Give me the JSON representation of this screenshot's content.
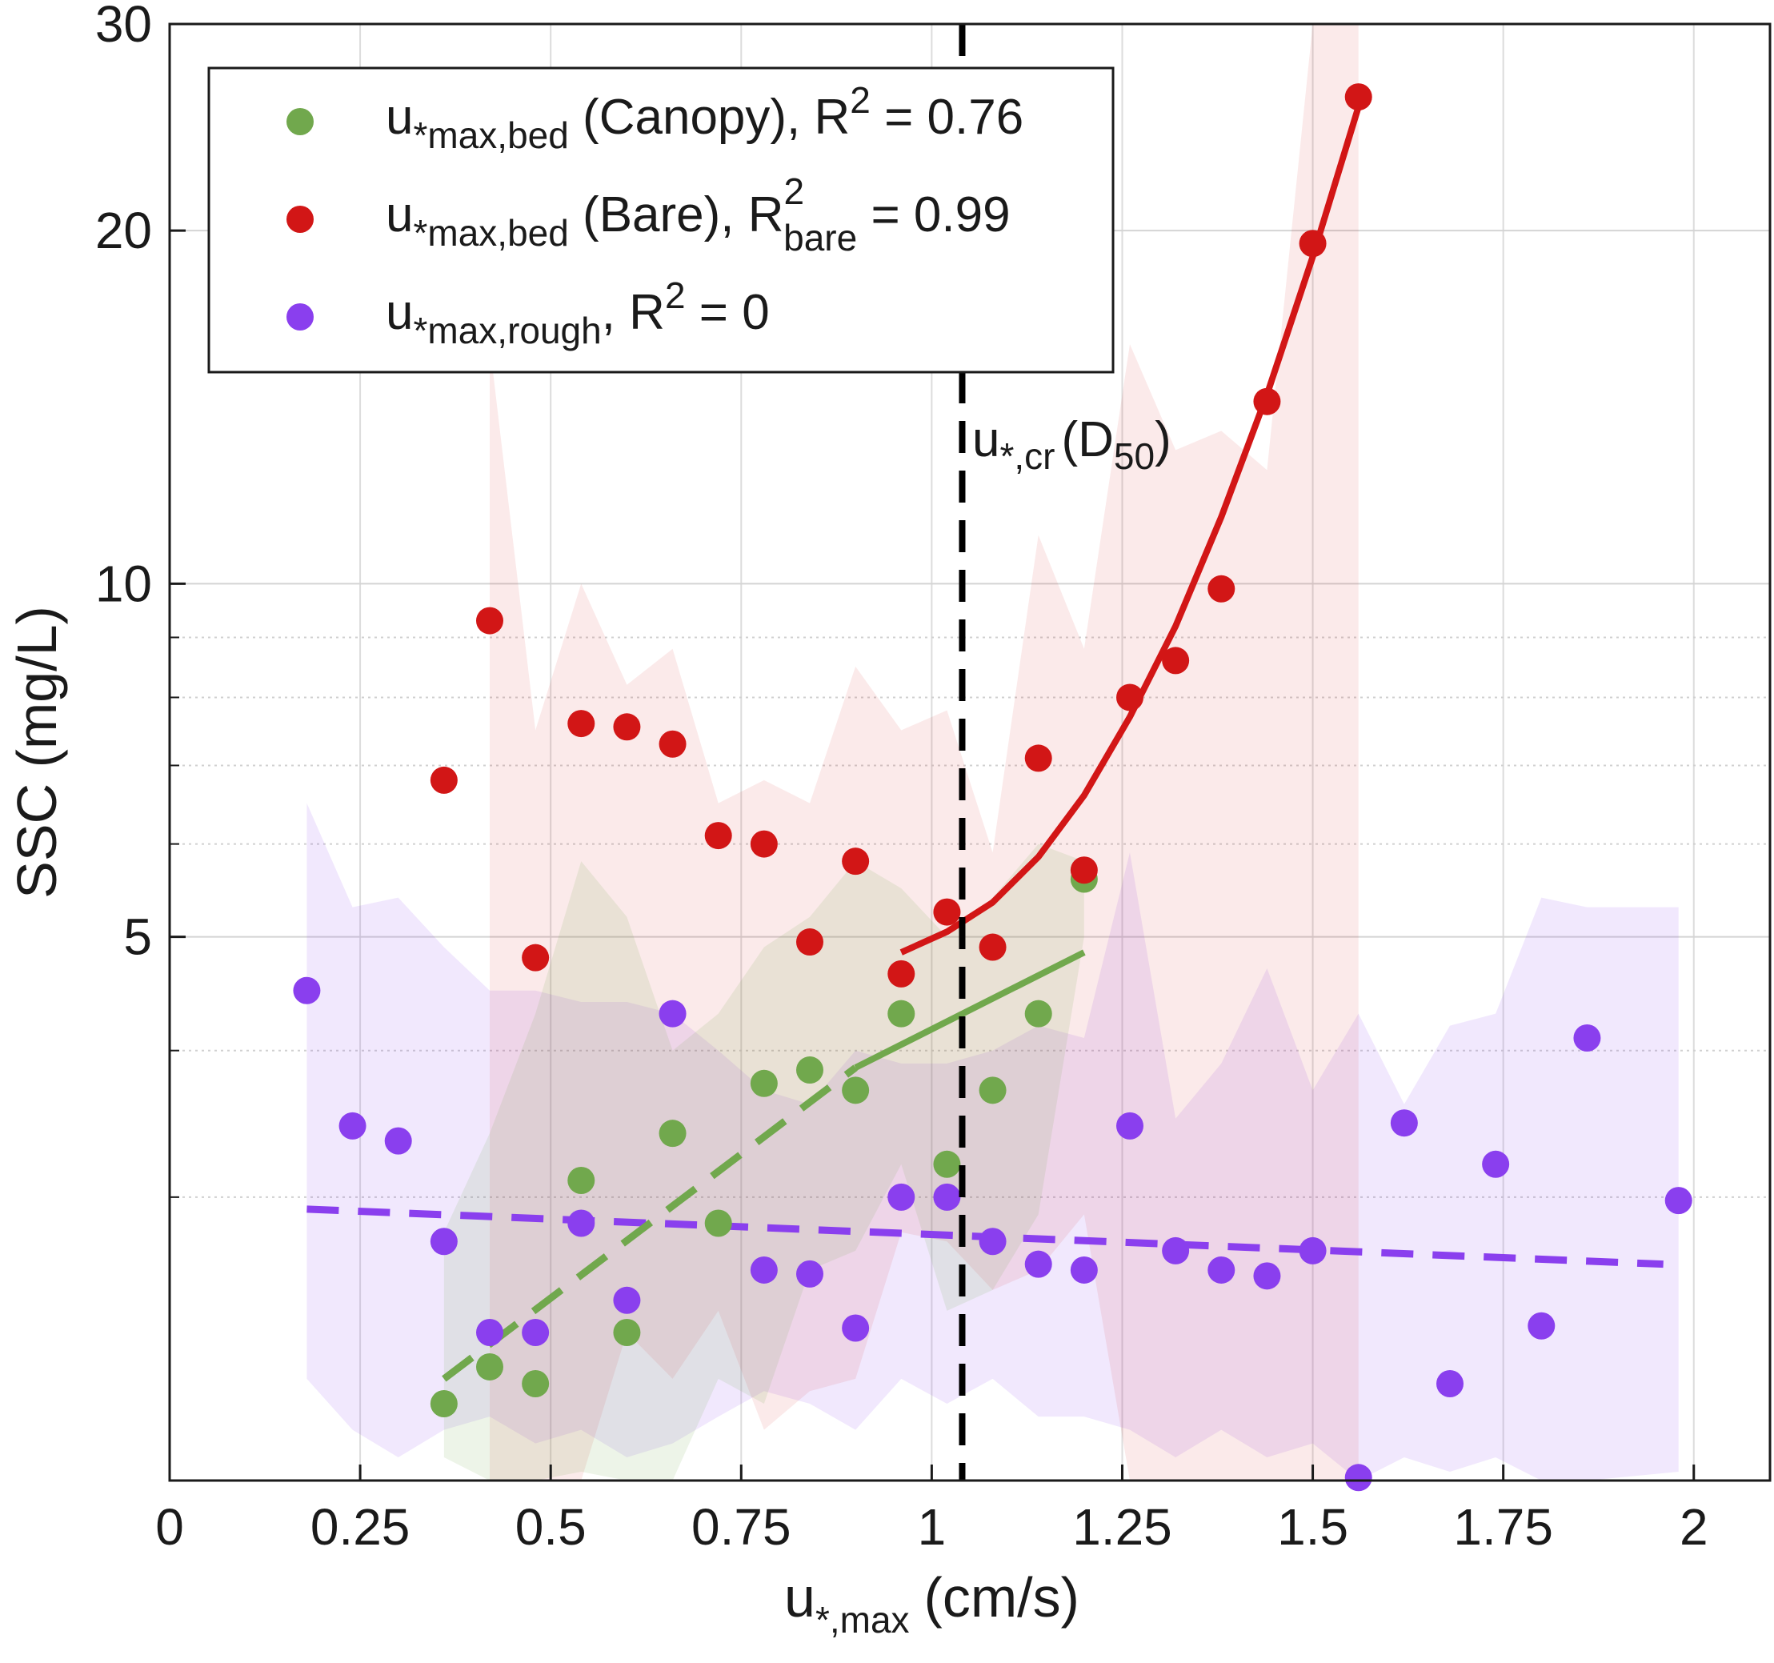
{
  "chart_data": {
    "type": "scatter",
    "title": "",
    "xlabel": {
      "main": "u",
      "sub": "*,max",
      "unit": "(cm/s)"
    },
    "ylabel": "SSC (mg/L)",
    "xlim": [
      0,
      2.1
    ],
    "y_scale": "log",
    "ylim": [
      1.72,
      30
    ],
    "x_ticks": [
      0,
      0.25,
      0.5,
      0.75,
      1,
      1.25,
      1.5,
      1.75,
      2
    ],
    "x_tick_labels": [
      "0",
      "0.25",
      "0.5",
      "0.75",
      "1",
      "1.25",
      "1.5",
      "1.75",
      "2"
    ],
    "y_ticks": [
      5,
      10,
      20,
      30
    ],
    "y_tick_labels": [
      "5",
      "10",
      "20",
      "30"
    ],
    "y_minor_ticks": [
      3,
      4,
      6,
      7,
      8,
      9
    ],
    "grid": true,
    "legend_position": "top-left",
    "critical_line": {
      "x": 1.04,
      "label_main": "u",
      "label_sub": "*,cr",
      "label_open": "(D",
      "label_sub2": "50",
      "label_close": ")"
    },
    "series": [
      {
        "name": "canopy",
        "color": "#71a84d",
        "legend": {
          "main": "u",
          "sub": "*max,bed",
          "rest": " (Canopy), R",
          "sup": "2",
          "tail": " = 0.76"
        },
        "x": [
          0.36,
          0.42,
          0.48,
          0.54,
          0.6,
          0.66,
          0.72,
          0.78,
          0.84,
          0.9,
          0.96,
          1.02,
          1.08,
          1.14,
          1.2
        ],
        "y": [
          2.0,
          2.15,
          2.08,
          3.1,
          2.3,
          3.4,
          2.85,
          3.75,
          3.85,
          3.7,
          4.3,
          3.2,
          3.7,
          4.3,
          5.6
        ],
        "fit_x": [
          0.36,
          1.2
        ],
        "fit_y": [
          2.1,
          4.85
        ],
        "fit_dash_until": 0.9,
        "band_upper": [
          2.8,
          3.4,
          4.3,
          5.8,
          5.2,
          4.0,
          4.3,
          4.9,
          5.2,
          5.8,
          5.5,
          5.0,
          5.4,
          6.0,
          5.8
        ],
        "band_lower": [
          1.8,
          1.72,
          1.72,
          1.75,
          1.72,
          1.72,
          2.1,
          2.0,
          2.6,
          2.7,
          3.2,
          2.4,
          2.5,
          2.9,
          5.0
        ]
      },
      {
        "name": "bare",
        "color": "#d21616",
        "legend": {
          "main": "u",
          "sub": "*max,bed",
          "rest": " (Bare), R",
          "sup": "2",
          "sub2": "bare",
          "tail": " = 0.99"
        },
        "x": [
          0.36,
          0.42,
          0.48,
          0.54,
          0.6,
          0.66,
          0.72,
          0.78,
          0.84,
          0.9,
          0.96,
          1.02,
          1.08,
          1.14,
          1.2,
          1.26,
          1.32,
          1.38,
          1.44,
          1.5,
          1.56
        ],
        "y": [
          6.8,
          9.3,
          4.8,
          7.6,
          7.55,
          7.3,
          6.1,
          6.0,
          4.95,
          5.8,
          4.65,
          5.25,
          4.9,
          7.1,
          5.7,
          8.0,
          8.6,
          9.9,
          14.3,
          19.5,
          26.0
        ],
        "fit_x": [
          0.96,
          1.02,
          1.08,
          1.14,
          1.2,
          1.26,
          1.32,
          1.38,
          1.44,
          1.5,
          1.56
        ],
        "fit_y": [
          4.85,
          5.05,
          5.35,
          5.85,
          6.6,
          7.7,
          9.2,
          11.4,
          14.5,
          19.0,
          25.5
        ],
        "band_x": [
          0.42,
          0.48,
          0.54,
          0.6,
          0.66,
          0.72,
          0.78,
          0.84,
          0.9,
          0.96,
          1.02,
          1.08,
          1.14,
          1.2,
          1.26,
          1.32,
          1.38,
          1.44,
          1.5,
          1.56
        ],
        "band_upper": [
          16.0,
          7.5,
          10.0,
          8.2,
          8.8,
          6.5,
          6.8,
          6.5,
          8.5,
          7.5,
          7.8,
          5.9,
          11.0,
          8.8,
          16.0,
          13.0,
          13.5,
          12.5,
          30.0,
          30.0
        ],
        "band_lower": [
          1.72,
          1.72,
          1.72,
          2.3,
          2.1,
          2.4,
          1.9,
          2.05,
          2.1,
          2.8,
          2.75,
          2.5,
          2.6,
          2.9,
          1.72,
          1.72,
          1.72,
          1.72,
          1.72,
          1.72
        ]
      },
      {
        "name": "rough",
        "color": "#8a3fee",
        "legend": {
          "main": "u",
          "sub": "*max,rough",
          "rest": ", R",
          "sup": "2",
          "tail": " = 0"
        },
        "x": [
          0.18,
          0.24,
          0.3,
          0.36,
          0.42,
          0.48,
          0.54,
          0.6,
          0.66,
          0.72,
          0.78,
          0.84,
          0.9,
          0.96,
          1.02,
          1.08,
          1.14,
          1.2,
          1.26,
          1.32,
          1.38,
          1.44,
          1.5,
          1.56,
          1.62,
          1.68,
          1.74,
          1.8,
          1.86,
          1.98
        ],
        "y": [
          4.5,
          3.45,
          3.35,
          2.75,
          2.3,
          2.3,
          2.85,
          2.45,
          4.3,
          null,
          2.6,
          2.58,
          2.32,
          3.0,
          3.0,
          2.75,
          2.63,
          2.6,
          3.45,
          2.7,
          2.6,
          2.57,
          2.7,
          1.73,
          3.47,
          2.08,
          3.2,
          2.33,
          4.1,
          2.98
        ],
        "fit_x": [
          0.18,
          1.96
        ],
        "fit_y": [
          2.93,
          2.63
        ],
        "band_upper": [
          6.5,
          5.3,
          5.4,
          4.9,
          4.5,
          4.5,
          4.4,
          4.4,
          4.3,
          4.0,
          3.7,
          3.6,
          4.0,
          3.9,
          3.9,
          4.0,
          4.2,
          4.1,
          5.9,
          3.5,
          3.9,
          4.7,
          3.7,
          4.3,
          3.6,
          4.2,
          4.3,
          5.4,
          5.3,
          5.3
        ],
        "band_lower": [
          2.1,
          1.9,
          1.8,
          1.9,
          1.95,
          1.85,
          1.9,
          1.8,
          1.85,
          1.95,
          2.05,
          2.0,
          1.9,
          2.1,
          2.0,
          2.1,
          1.95,
          1.95,
          1.9,
          1.8,
          1.9,
          1.8,
          1.85,
          1.72,
          1.8,
          1.75,
          1.8,
          1.72,
          1.72,
          1.75
        ]
      }
    ]
  }
}
